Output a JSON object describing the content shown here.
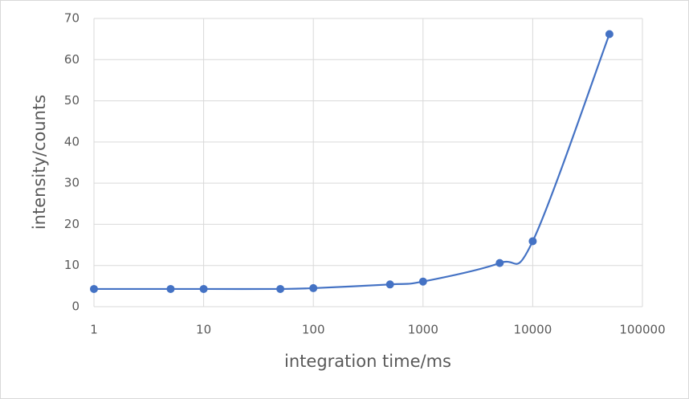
{
  "chart_data": {
    "type": "line",
    "x_label": "integration time/ms",
    "y_label": "intensity/counts",
    "x": [
      1,
      5,
      10,
      50,
      100,
      500,
      1000,
      5000,
      10000,
      50000
    ],
    "series": [
      {
        "color": "#4472c4",
        "values": [
          4.3,
          4.3,
          4.3,
          4.3,
          4.5,
          5.4,
          6.1,
          10.6,
          15.9,
          66.2
        ]
      }
    ],
    "xscale": "log",
    "xlim": [
      1,
      100000
    ],
    "xticks": [
      1,
      10,
      100,
      1000,
      10000,
      100000
    ],
    "ylim": [
      0,
      70
    ],
    "yticks": [
      0,
      10,
      20,
      30,
      40,
      50,
      60,
      70
    ],
    "grid": true
  }
}
